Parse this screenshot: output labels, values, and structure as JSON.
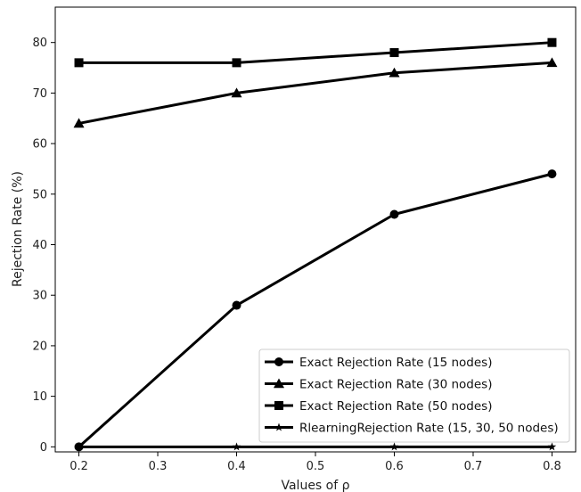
{
  "chart_data": {
    "type": "line",
    "title": "",
    "xlabel": "Values of ρ",
    "ylabel": "Rejection Rate (%)",
    "xlim": [
      0.17,
      0.83
    ],
    "ylim": [
      -1,
      87
    ],
    "xticks": [
      0.2,
      0.3,
      0.4,
      0.5,
      0.6,
      0.7,
      0.8
    ],
    "xtick_labels": [
      "0.2",
      "0.3",
      "0.4",
      "0.5",
      "0.6",
      "0.7",
      "0.8"
    ],
    "yticks": [
      0,
      10,
      20,
      30,
      40,
      50,
      60,
      70,
      80
    ],
    "ytick_labels": [
      "0",
      "10",
      "20",
      "30",
      "40",
      "50",
      "60",
      "70",
      "80"
    ],
    "grid": false,
    "legend_position": "bottom-right",
    "x": [
      0.2,
      0.4,
      0.6,
      0.8
    ],
    "series": [
      {
        "name": "Exact Rejection Rate (15 nodes)",
        "values": [
          0,
          28,
          46,
          54
        ],
        "marker": "circle",
        "color": "#000000"
      },
      {
        "name": "Exact Rejection Rate (30 nodes)",
        "values": [
          64,
          70,
          74,
          76
        ],
        "marker": "triangle",
        "color": "#000000"
      },
      {
        "name": "Exact Rejection Rate (50 nodes)",
        "values": [
          76,
          76,
          78,
          80
        ],
        "marker": "square",
        "color": "#000000"
      },
      {
        "name": "RlearningRejection Rate (15, 30, 50 nodes)",
        "values": [
          0,
          0,
          0,
          0
        ],
        "marker": "star",
        "color": "#000000"
      }
    ]
  }
}
